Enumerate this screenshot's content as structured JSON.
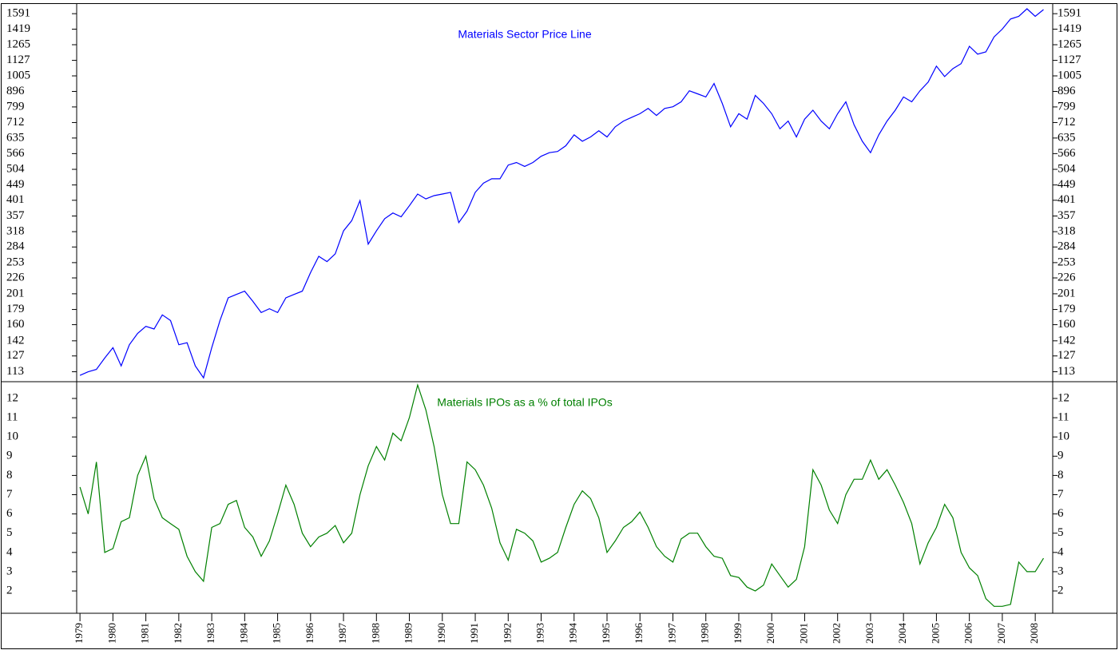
{
  "chart_data": [
    {
      "type": "line",
      "title": "Materials Sector Price Line",
      "log_scale": true,
      "x": [
        1979,
        1979.25,
        1979.5,
        1979.75,
        1980,
        1980.25,
        1980.5,
        1980.75,
        1981,
        1981.25,
        1981.5,
        1981.75,
        1982,
        1982.25,
        1982.5,
        1982.75,
        1983,
        1983.25,
        1983.5,
        1983.75,
        1984,
        1984.25,
        1984.5,
        1984.75,
        1985,
        1985.25,
        1985.5,
        1985.75,
        1986,
        1986.25,
        1986.5,
        1986.75,
        1987,
        1987.25,
        1987.5,
        1987.75,
        1988,
        1988.25,
        1988.5,
        1988.75,
        1989,
        1989.25,
        1989.5,
        1989.75,
        1990,
        1990.25,
        1990.5,
        1990.75,
        1991,
        1991.25,
        1991.5,
        1991.75,
        1992,
        1992.25,
        1992.5,
        1992.75,
        1993,
        1993.25,
        1993.5,
        1993.75,
        1994,
        1994.25,
        1994.5,
        1994.75,
        1995,
        1995.25,
        1995.5,
        1995.75,
        1996,
        1996.25,
        1996.5,
        1996.75,
        1997,
        1997.25,
        1997.5,
        1997.75,
        1998,
        1998.25,
        1998.5,
        1998.75,
        1999,
        1999.25,
        1999.5,
        1999.75,
        2000,
        2000.25,
        2000.5,
        2000.75,
        2001,
        2001.25,
        2001.5,
        2001.75,
        2002,
        2002.25,
        2002.5,
        2002.75,
        2003,
        2003.25,
        2003.5,
        2003.75,
        2004,
        2004.25,
        2004.5,
        2004.75,
        2005,
        2005.25,
        2005.5,
        2005.75,
        2006,
        2006.25,
        2006.5,
        2006.75,
        2007,
        2007.25,
        2007.5,
        2007.75,
        2008,
        2008.25
      ],
      "series": [
        {
          "color": "#0000ff",
          "values": [
            110,
            113,
            115,
            125,
            135,
            118,
            138,
            150,
            158,
            155,
            172,
            165,
            138,
            140,
            118,
            108,
            135,
            165,
            195,
            200,
            205,
            190,
            175,
            180,
            175,
            195,
            200,
            205,
            235,
            265,
            255,
            270,
            320,
            345,
            400,
            290,
            320,
            350,
            365,
            355,
            385,
            420,
            405,
            415,
            420,
            425,
            340,
            370,
            425,
            455,
            470,
            470,
            520,
            530,
            515,
            530,
            555,
            570,
            575,
            600,
            650,
            620,
            640,
            670,
            640,
            690,
            720,
            740,
            760,
            790,
            750,
            790,
            800,
            830,
            900,
            880,
            860,
            950,
            820,
            690,
            760,
            730,
            870,
            820,
            760,
            680,
            720,
            640,
            730,
            780,
            720,
            680,
            760,
            830,
            700,
            620,
            570,
            650,
            720,
            780,
            860,
            830,
            900,
            960,
            1080,
            1000,
            1060,
            1100,
            1250,
            1180,
            1200,
            1340,
            1420,
            1530,
            1560,
            1650,
            1560,
            1640
          ]
        }
      ],
      "xlim": [
        1978.9,
        2008.53
      ],
      "ylim": [
        105,
        1709
      ],
      "yticks": [
        1591,
        1419,
        1265,
        1127,
        1005,
        896,
        799,
        712,
        635,
        566,
        504,
        449,
        401,
        357,
        318,
        284,
        253,
        226,
        201,
        179,
        160,
        142,
        127,
        113
      ]
    },
    {
      "type": "line",
      "title": "Materials IPOs as a % of total IPOs",
      "x": [
        1979,
        1979.25,
        1979.5,
        1979.75,
        1980,
        1980.25,
        1980.5,
        1980.75,
        1981,
        1981.25,
        1981.5,
        1981.75,
        1982,
        1982.25,
        1982.5,
        1982.75,
        1983,
        1983.25,
        1983.5,
        1983.75,
        1984,
        1984.25,
        1984.5,
        1984.75,
        1985,
        1985.25,
        1985.5,
        1985.75,
        1986,
        1986.25,
        1986.5,
        1986.75,
        1987,
        1987.25,
        1987.5,
        1987.75,
        1988,
        1988.25,
        1988.5,
        1988.75,
        1989,
        1989.25,
        1989.5,
        1989.75,
        1990,
        1990.25,
        1990.5,
        1990.75,
        1991,
        1991.25,
        1991.5,
        1991.75,
        1992,
        1992.25,
        1992.5,
        1992.75,
        1993,
        1993.25,
        1993.5,
        1993.75,
        1994,
        1994.25,
        1994.5,
        1994.75,
        1995,
        1995.25,
        1995.5,
        1995.75,
        1996,
        1996.25,
        1996.5,
        1996.75,
        1997,
        1997.25,
        1997.5,
        1997.75,
        1998,
        1998.25,
        1998.5,
        1998.75,
        1999,
        1999.25,
        1999.5,
        1999.75,
        2000,
        2000.25,
        2000.5,
        2000.75,
        2001,
        2001.25,
        2001.5,
        2001.75,
        2002,
        2002.25,
        2002.5,
        2002.75,
        2003,
        2003.25,
        2003.5,
        2003.75,
        2004,
        2004.25,
        2004.5,
        2004.75,
        2005,
        2005.25,
        2005.5,
        2005.75,
        2006,
        2006.25,
        2006.5,
        2006.75,
        2007,
        2007.25,
        2007.5,
        2007.75,
        2008,
        2008.25
      ],
      "series": [
        {
          "color": "#008000",
          "values": [
            7.4,
            6.0,
            8.7,
            4.0,
            4.2,
            5.6,
            5.8,
            8.0,
            9.0,
            6.8,
            5.8,
            5.5,
            5.2,
            3.8,
            3.0,
            2.5,
            5.3,
            5.5,
            6.5,
            6.7,
            5.3,
            4.8,
            3.8,
            4.6,
            6.0,
            7.5,
            6.5,
            5.0,
            4.3,
            4.8,
            5.0,
            5.4,
            4.5,
            5.0,
            7.0,
            8.5,
            9.5,
            8.8,
            10.2,
            9.8,
            11.0,
            12.7,
            11.4,
            9.5,
            7.0,
            5.5,
            5.5,
            8.7,
            8.3,
            7.5,
            6.3,
            4.5,
            3.6,
            5.2,
            5.0,
            4.6,
            3.5,
            3.7,
            4.0,
            5.3,
            6.5,
            7.2,
            6.8,
            5.8,
            4.0,
            4.6,
            5.3,
            5.6,
            6.1,
            5.3,
            4.3,
            3.8,
            3.5,
            4.7,
            5.0,
            5.0,
            4.3,
            3.8,
            3.7,
            2.8,
            2.7,
            2.2,
            2.0,
            2.3,
            3.4,
            2.8,
            2.2,
            2.6,
            4.3,
            8.3,
            7.5,
            6.2,
            5.5,
            7.0,
            7.8,
            7.8,
            8.8,
            7.8,
            8.3,
            7.5,
            6.6,
            5.5,
            3.4,
            4.5,
            5.3,
            6.5,
            5.8,
            4.0,
            3.2,
            2.8,
            1.6,
            1.2,
            1.2,
            1.3,
            3.5,
            3.0,
            3.0,
            3.7
          ]
        }
      ],
      "xlim": [
        1978.9,
        2008.53
      ],
      "ylim": [
        0.84,
        12.87
      ],
      "yticks": [
        2,
        3,
        4,
        5,
        6,
        7,
        8,
        9,
        10,
        11,
        12
      ],
      "xticks": [
        1979,
        1980,
        1981,
        1982,
        1983,
        1984,
        1985,
        1986,
        1987,
        1988,
        1989,
        1990,
        1991,
        1992,
        1993,
        1994,
        1995,
        1996,
        1997,
        1998,
        1999,
        2000,
        2001,
        2002,
        2003,
        2004,
        2005,
        2006,
        2007,
        2008
      ]
    }
  ]
}
